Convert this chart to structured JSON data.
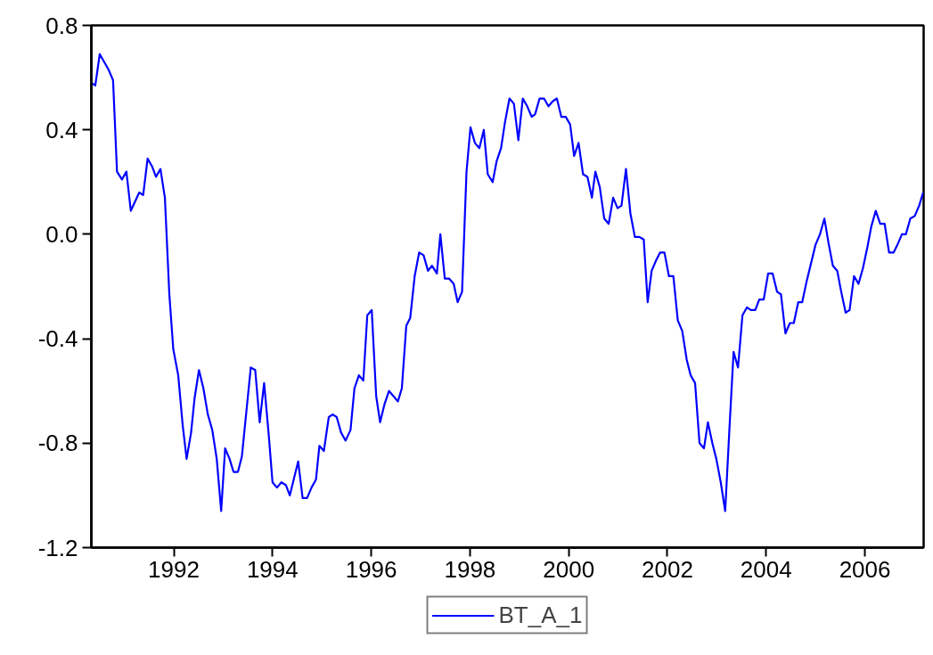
{
  "chart_data": {
    "type": "line",
    "x": [
      1990.33,
      1990.41,
      1990.5,
      1990.59,
      1990.68,
      1990.77,
      1990.85,
      1990.95,
      1991.04,
      1991.13,
      1991.3,
      1991.38,
      1991.47,
      1991.56,
      1991.64,
      1991.73,
      1991.82,
      1991.91,
      1991.99,
      1992.09,
      1992.18,
      1992.26,
      1992.35,
      1992.42,
      1992.51,
      1992.6,
      1992.69,
      1992.78,
      1992.87,
      1992.96,
      1993.04,
      1993.13,
      1993.21,
      1993.3,
      1993.38,
      1993.47,
      1993.56,
      1993.65,
      1993.74,
      1993.83,
      1993.92,
      1994.0,
      1994.09,
      1994.18,
      1994.27,
      1994.35,
      1994.52,
      1994.61,
      1994.7,
      1994.79,
      1994.88,
      1994.95,
      1995.04,
      1995.14,
      1995.22,
      1995.3,
      1995.39,
      1995.48,
      1995.58,
      1995.66,
      1995.75,
      1995.84,
      1995.92,
      1996.01,
      1996.1,
      1996.18,
      1996.27,
      1996.36,
      1996.45,
      1996.54,
      1996.62,
      1996.71,
      1996.79,
      1996.88,
      1996.97,
      1997.06,
      1997.15,
      1997.23,
      1997.33,
      1997.4,
      1997.49,
      1997.58,
      1997.67,
      1997.75,
      1997.84,
      1997.93,
      1998.01,
      1998.1,
      1998.19,
      1998.28,
      1998.36,
      1998.46,
      1998.54,
      1998.63,
      1998.71,
      1998.8,
      1998.89,
      1998.98,
      1999.07,
      1999.16,
      1999.25,
      1999.32,
      1999.41,
      1999.5,
      1999.59,
      1999.68,
      1999.76,
      1999.85,
      1999.94,
      2000.03,
      2000.11,
      2000.2,
      2000.29,
      2000.38,
      2000.47,
      2000.54,
      2000.63,
      2000.72,
      2000.81,
      2000.9,
      2000.99,
      2001.07,
      2001.16,
      2001.25,
      2001.34,
      2001.43,
      2001.52,
      2001.6,
      2001.68,
      2001.77,
      2001.85,
      2001.94,
      2002.03,
      2002.12,
      2002.21,
      2002.3,
      2002.39,
      2002.47,
      2002.56,
      2002.65,
      2002.74,
      2002.82,
      2002.91,
      2002.99,
      2003.08,
      2003.17,
      2003.26,
      2003.34,
      2003.43,
      2003.52,
      2003.61,
      2003.69,
      2003.78,
      2003.86,
      2003.95,
      2004.04,
      2004.13,
      2004.22,
      2004.3,
      2004.39,
      2004.48,
      2004.56,
      2004.65,
      2004.73,
      2004.82,
      2004.91,
      2005.0,
      2005.09,
      2005.18,
      2005.26,
      2005.35,
      2005.44,
      2005.52,
      2005.61,
      2005.69,
      2005.78,
      2005.87,
      2005.96,
      2006.05,
      2006.13,
      2006.22,
      2006.31,
      2006.4,
      2006.49,
      2006.58,
      2006.66,
      2006.75,
      2006.83,
      2006.92,
      2007.01,
      2007.1,
      2007.18
    ],
    "series": [
      {
        "name": "BT_A_1",
        "color": "#0000ff",
        "values": [
          0.58,
          0.57,
          0.69,
          0.66,
          0.63,
          0.59,
          0.24,
          0.21,
          0.24,
          0.09,
          0.16,
          0.15,
          0.29,
          0.26,
          0.22,
          0.25,
          0.14,
          -0.23,
          -0.44,
          -0.54,
          -0.73,
          -0.86,
          -0.76,
          -0.63,
          -0.52,
          -0.59,
          -0.69,
          -0.75,
          -0.86,
          -1.06,
          -0.82,
          -0.86,
          -0.91,
          -0.91,
          -0.85,
          -0.68,
          -0.51,
          -0.52,
          -0.72,
          -0.57,
          -0.76,
          -0.95,
          -0.97,
          -0.95,
          -0.96,
          -1.0,
          -0.87,
          -1.01,
          -1.01,
          -0.97,
          -0.94,
          -0.81,
          -0.83,
          -0.7,
          -0.69,
          -0.7,
          -0.76,
          -0.79,
          -0.75,
          -0.59,
          -0.54,
          -0.56,
          -0.31,
          -0.29,
          -0.62,
          -0.72,
          -0.65,
          -0.6,
          -0.62,
          -0.64,
          -0.59,
          -0.35,
          -0.32,
          -0.16,
          -0.07,
          -0.08,
          -0.14,
          -0.12,
          -0.15,
          0.0,
          -0.17,
          -0.17,
          -0.19,
          -0.26,
          -0.22,
          0.24,
          0.41,
          0.35,
          0.33,
          0.4,
          0.23,
          0.2,
          0.28,
          0.33,
          0.43,
          0.52,
          0.5,
          0.36,
          0.52,
          0.49,
          0.45,
          0.46,
          0.52,
          0.52,
          0.49,
          0.51,
          0.52,
          0.45,
          0.45,
          0.42,
          0.3,
          0.35,
          0.23,
          0.22,
          0.14,
          0.24,
          0.18,
          0.06,
          0.04,
          0.14,
          0.1,
          0.11,
          0.25,
          0.08,
          -0.01,
          -0.01,
          -0.02,
          -0.26,
          -0.14,
          -0.1,
          -0.07,
          -0.07,
          -0.16,
          -0.16,
          -0.33,
          -0.37,
          -0.48,
          -0.54,
          -0.57,
          -0.8,
          -0.82,
          -0.72,
          -0.8,
          -0.86,
          -0.95,
          -1.06,
          -0.73,
          -0.45,
          -0.51,
          -0.31,
          -0.28,
          -0.29,
          -0.29,
          -0.25,
          -0.25,
          -0.15,
          -0.15,
          -0.22,
          -0.23,
          -0.38,
          -0.34,
          -0.34,
          -0.26,
          -0.26,
          -0.18,
          -0.11,
          -0.04,
          0.0,
          0.06,
          -0.03,
          -0.12,
          -0.14,
          -0.22,
          -0.3,
          -0.29,
          -0.16,
          -0.19,
          -0.13,
          -0.05,
          0.03,
          0.09,
          0.04,
          0.04,
          -0.07,
          -0.07,
          -0.04,
          0.0,
          0.0,
          0.06,
          0.07,
          0.11,
          0.16
        ]
      }
    ],
    "xlim": [
      1990.33,
      2007.19
    ],
    "ylim": [
      -1.2,
      0.8
    ],
    "xticks": [
      1992,
      1994,
      1996,
      1998,
      2000,
      2002,
      2004,
      2006
    ],
    "yticks": [
      {
        "value": -1.2,
        "label": "-1.2"
      },
      {
        "value": -0.8,
        "label": "-0.8"
      },
      {
        "value": -0.4,
        "label": "-0.4"
      },
      {
        "value": 0,
        "label": "0.0"
      },
      {
        "value": 0.4,
        "label": "0.4"
      },
      {
        "value": 0.8,
        "label": "0.8"
      }
    ],
    "grid": false,
    "legend": "bottom",
    "line_style": "solid",
    "marker": "none"
  }
}
